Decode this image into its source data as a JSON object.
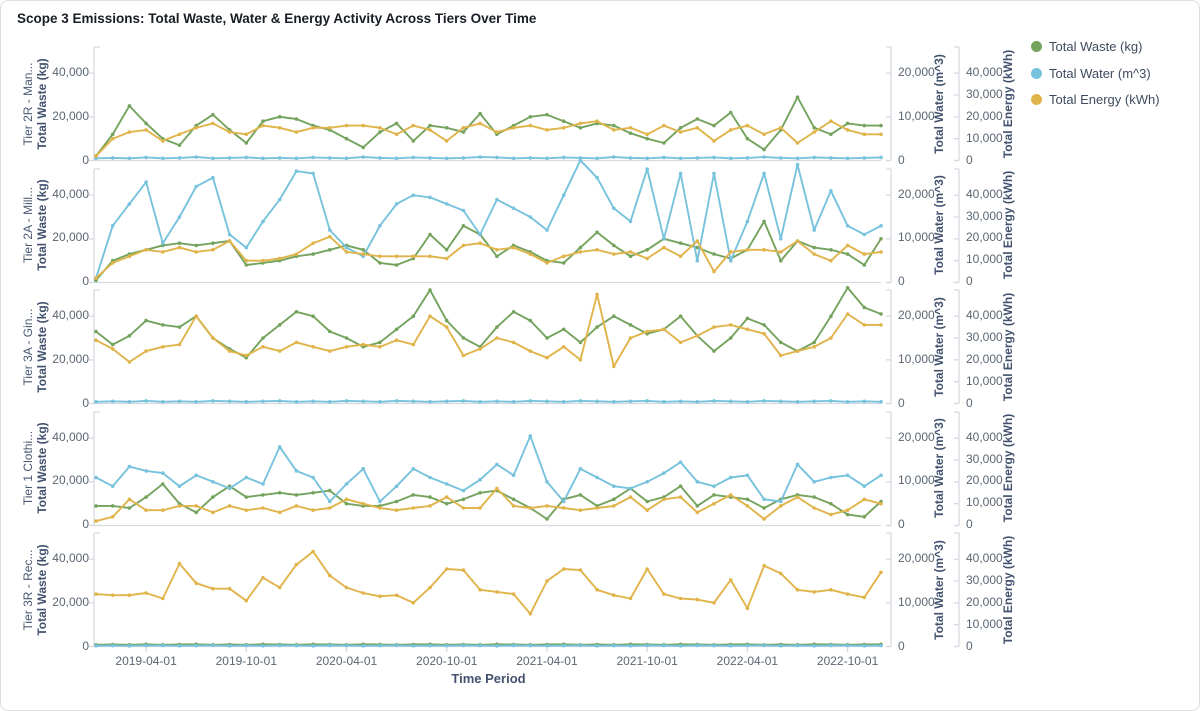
{
  "card": {
    "title": "Scope 3 Emissions: Total Waste, Water & Energy Activity Across Tiers Over Time"
  },
  "chart_data": {
    "type": "line",
    "title": "Scope 3 Emissions: Total Waste, Water & Energy Activity Across Tiers Over Time",
    "xlabel": "Time Period",
    "x_tick_labels": [
      "2019-04-01",
      "2019-10-01",
      "2020-04-01",
      "2020-10-01",
      "2021-04-01",
      "2021-10-01",
      "2022-04-01",
      "2022-10-01"
    ],
    "x_tick_indices": [
      3,
      9,
      15,
      21,
      27,
      33,
      39,
      45
    ],
    "x": [
      "2019-01",
      "2019-02",
      "2019-03",
      "2019-04",
      "2019-05",
      "2019-06",
      "2019-07",
      "2019-08",
      "2019-09",
      "2019-10",
      "2019-11",
      "2019-12",
      "2020-01",
      "2020-02",
      "2020-03",
      "2020-04",
      "2020-05",
      "2020-06",
      "2020-07",
      "2020-08",
      "2020-09",
      "2020-10",
      "2020-11",
      "2020-12",
      "2021-01",
      "2021-02",
      "2021-03",
      "2021-04",
      "2021-05",
      "2021-06",
      "2021-07",
      "2021-08",
      "2021-09",
      "2021-10",
      "2021-11",
      "2021-12",
      "2022-01",
      "2022-02",
      "2022-03",
      "2022-04",
      "2022-05",
      "2022-06",
      "2022-07",
      "2022-08",
      "2022-09",
      "2022-10",
      "2022-11",
      "2022-12"
    ],
    "legend": [
      {
        "label": "Total Waste (kg)",
        "color": "#74a35e",
        "key": "waste"
      },
      {
        "label": "Total Water (m^3)",
        "color": "#77c2dc",
        "key": "water"
      },
      {
        "label": "Total Energy (kWh)",
        "color": "#e0b44a",
        "key": "energy"
      }
    ],
    "axes": {
      "waste": {
        "label": "Total Waste (kg)",
        "ticks": [
          0,
          20000,
          40000
        ],
        "max": 52000
      },
      "water": {
        "label": "Total Water (m^3)",
        "ticks": [
          0,
          10000,
          20000
        ],
        "max": 26000
      },
      "energy": {
        "label": "Total Energy (kWh)",
        "ticks": [
          0,
          10000,
          20000,
          30000,
          40000
        ],
        "max": 52000
      }
    },
    "grid": false,
    "legend_position": "top-right",
    "facets": [
      {
        "label": "Tier 2R - Man...",
        "series": {
          "waste": [
            2000,
            12000,
            25000,
            17000,
            10000,
            7000,
            16000,
            21000,
            14000,
            8000,
            18000,
            20000,
            19000,
            16000,
            14000,
            10000,
            6000,
            13000,
            17000,
            9000,
            16000,
            15000,
            13000,
            21500,
            12000,
            16000,
            20000,
            21000,
            18000,
            15000,
            17000,
            16000,
            12500,
            10000,
            8000,
            15000,
            19000,
            16000,
            22000,
            10000,
            5000,
            14000,
            29000,
            15000,
            12000,
            17000,
            16000,
            16000
          ],
          "water": [
            500,
            600,
            500,
            700,
            500,
            600,
            800,
            500,
            600,
            700,
            500,
            600,
            500,
            700,
            600,
            500,
            800,
            600,
            500,
            700,
            600,
            500,
            600,
            800,
            700,
            500,
            600,
            500,
            700,
            600,
            500,
            800,
            600,
            500,
            700,
            500,
            600,
            700,
            500,
            600,
            800,
            600,
            500,
            700,
            600,
            500,
            600,
            700
          ],
          "energy": [
            2000,
            10000,
            13000,
            14000,
            9000,
            12000,
            15000,
            17000,
            13000,
            12000,
            16000,
            15000,
            13000,
            15000,
            15000,
            16000,
            16000,
            15000,
            12000,
            16000,
            14000,
            9000,
            15000,
            17000,
            13000,
            15000,
            16000,
            14000,
            15000,
            17000,
            18000,
            14000,
            15000,
            12000,
            16000,
            13000,
            15000,
            9000,
            14000,
            16000,
            12000,
            15000,
            8000,
            13000,
            18000,
            14000,
            12000,
            12000
          ]
        }
      },
      {
        "label": "Tier 2A - Mill...",
        "series": {
          "waste": [
            1000,
            10000,
            13000,
            15000,
            17000,
            18000,
            17000,
            18000,
            19000,
            8000,
            9000,
            10000,
            12000,
            13000,
            15000,
            17000,
            15000,
            9000,
            8000,
            11000,
            22000,
            15000,
            26000,
            22000,
            12000,
            17000,
            14000,
            10000,
            9000,
            16000,
            23000,
            17000,
            12000,
            15000,
            20000,
            18000,
            16000,
            13000,
            11000,
            15000,
            28000,
            10000,
            19000,
            16000,
            15000,
            13000,
            8000,
            20000
          ],
          "water": [
            1000,
            13000,
            18000,
            23000,
            9000,
            15000,
            22000,
            24000,
            11000,
            8000,
            14000,
            19000,
            25500,
            25000,
            12000,
            8000,
            6000,
            13000,
            18000,
            20000,
            19500,
            18000,
            16500,
            11000,
            19000,
            17000,
            15000,
            12000,
            20000,
            28000,
            24000,
            17000,
            14000,
            26000,
            10000,
            25000,
            5000,
            25000,
            5000,
            14000,
            25000,
            10000,
            27000,
            12000,
            21000,
            13000,
            11000,
            13000
          ],
          "energy": [
            2000,
            9000,
            12000,
            15000,
            14000,
            16000,
            14000,
            15000,
            19000,
            10000,
            10000,
            11000,
            13000,
            18000,
            21000,
            14000,
            13000,
            12000,
            12000,
            12000,
            12000,
            11000,
            17000,
            18000,
            15000,
            16000,
            13000,
            9000,
            12000,
            14000,
            15000,
            13000,
            14000,
            11000,
            16000,
            12000,
            19000,
            5000,
            14000,
            15000,
            15000,
            14000,
            19000,
            13000,
            10000,
            17000,
            13000,
            14000
          ]
        }
      },
      {
        "label": "Tier 3A - Gin...",
        "series": {
          "waste": [
            33000,
            27000,
            31000,
            38000,
            36000,
            35000,
            40000,
            30000,
            25000,
            21000,
            30000,
            36000,
            42000,
            40000,
            33000,
            30000,
            26000,
            28000,
            34000,
            40000,
            52000,
            38000,
            30000,
            26000,
            35000,
            42000,
            38000,
            30000,
            34000,
            28000,
            35000,
            40000,
            36000,
            32000,
            34000,
            40000,
            31000,
            24000,
            30000,
            39000,
            36000,
            28000,
            24000,
            28000,
            40000,
            53000,
            44000,
            41000
          ],
          "water": [
            400,
            500,
            400,
            600,
            400,
            500,
            400,
            600,
            500,
            400,
            500,
            600,
            400,
            500,
            400,
            600,
            500,
            400,
            600,
            500,
            400,
            500,
            600,
            400,
            500,
            400,
            600,
            500,
            400,
            600,
            500,
            400,
            500,
            600,
            400,
            500,
            400,
            600,
            500,
            400,
            600,
            500,
            400,
            500,
            600,
            400,
            500,
            400
          ],
          "energy": [
            29000,
            25000,
            19000,
            24000,
            26000,
            27000,
            40000,
            30000,
            24000,
            22000,
            26000,
            24000,
            28000,
            26000,
            24000,
            26000,
            27000,
            26000,
            29000,
            27000,
            40000,
            35000,
            22000,
            25000,
            30000,
            28000,
            24000,
            21000,
            26000,
            20000,
            50000,
            17000,
            30000,
            33000,
            34000,
            28000,
            31000,
            35000,
            36000,
            34000,
            32000,
            22000,
            24000,
            26000,
            30000,
            41000,
            36000,
            36000
          ]
        }
      },
      {
        "label": "Tier 1 Clothi...",
        "series": {
          "waste": [
            9000,
            9000,
            8000,
            13000,
            19000,
            10000,
            6000,
            13000,
            18000,
            13000,
            14000,
            15000,
            14000,
            15000,
            16000,
            10000,
            9000,
            9000,
            11000,
            14000,
            13000,
            10000,
            12000,
            15000,
            16000,
            12000,
            8000,
            3000,
            12000,
            14000,
            9000,
            12000,
            17000,
            11000,
            13000,
            18000,
            9000,
            14000,
            13000,
            12000,
            8000,
            12000,
            14000,
            13000,
            10000,
            5000,
            4000,
            11000
          ],
          "water": [
            11000,
            9000,
            13500,
            12500,
            12000,
            9000,
            11500,
            10000,
            8500,
            11000,
            9500,
            18000,
            12500,
            11000,
            5500,
            9500,
            13000,
            5500,
            9000,
            13000,
            11000,
            9500,
            8000,
            10500,
            14000,
            11500,
            20500,
            10000,
            5500,
            13000,
            11000,
            9000,
            8500,
            10000,
            12000,
            14500,
            10000,
            9000,
            11000,
            11500,
            6000,
            5500,
            14000,
            10000,
            11000,
            11500,
            9000,
            11500
          ],
          "energy": [
            2000,
            4000,
            12000,
            7000,
            7000,
            9000,
            9000,
            6000,
            9000,
            7000,
            8000,
            6000,
            9000,
            7000,
            8000,
            12000,
            10000,
            8000,
            7000,
            8000,
            9000,
            13000,
            8000,
            8000,
            17000,
            9000,
            8000,
            9000,
            8000,
            7000,
            8000,
            9000,
            13000,
            7000,
            12000,
            13000,
            6000,
            10000,
            14000,
            9000,
            3000,
            9000,
            13000,
            8000,
            5000,
            7000,
            12000,
            10000
          ]
        }
      },
      {
        "label": "Tier 3R - Rec...",
        "series": {
          "waste": [
            800,
            900,
            800,
            1000,
            800,
            900,
            1000,
            800,
            900,
            800,
            1000,
            900,
            800,
            1000,
            900,
            800,
            1000,
            900,
            800,
            900,
            1000,
            800,
            900,
            800,
            1000,
            900,
            800,
            900,
            1000,
            800,
            900,
            800,
            1000,
            900,
            800,
            1000,
            900,
            800,
            900,
            1000,
            800,
            900,
            800,
            1000,
            900,
            800,
            900,
            1000
          ],
          "water": [
            150,
            200,
            150,
            250,
            200,
            150,
            200,
            250,
            150,
            200,
            150,
            250,
            200,
            150,
            250,
            200,
            150,
            200,
            250,
            150,
            200,
            150,
            250,
            200,
            150,
            250,
            200,
            150,
            200,
            250,
            150,
            200,
            150,
            250,
            200,
            150,
            250,
            200,
            150,
            200,
            250,
            150,
            200,
            150,
            250,
            200,
            150,
            200
          ],
          "energy": [
            24000,
            23500,
            23500,
            24500,
            22000,
            38000,
            29000,
            26500,
            26500,
            21000,
            31500,
            27000,
            37500,
            43500,
            32500,
            27000,
            24500,
            23000,
            23500,
            20000,
            27000,
            35500,
            35000,
            26000,
            25000,
            24000,
            15000,
            30000,
            35500,
            35000,
            26000,
            23500,
            22000,
            35500,
            24000,
            22000,
            21500,
            20000,
            30500,
            17500,
            37000,
            33500,
            26000,
            25000,
            26000,
            24000,
            22500,
            34000
          ]
        }
      }
    ]
  }
}
